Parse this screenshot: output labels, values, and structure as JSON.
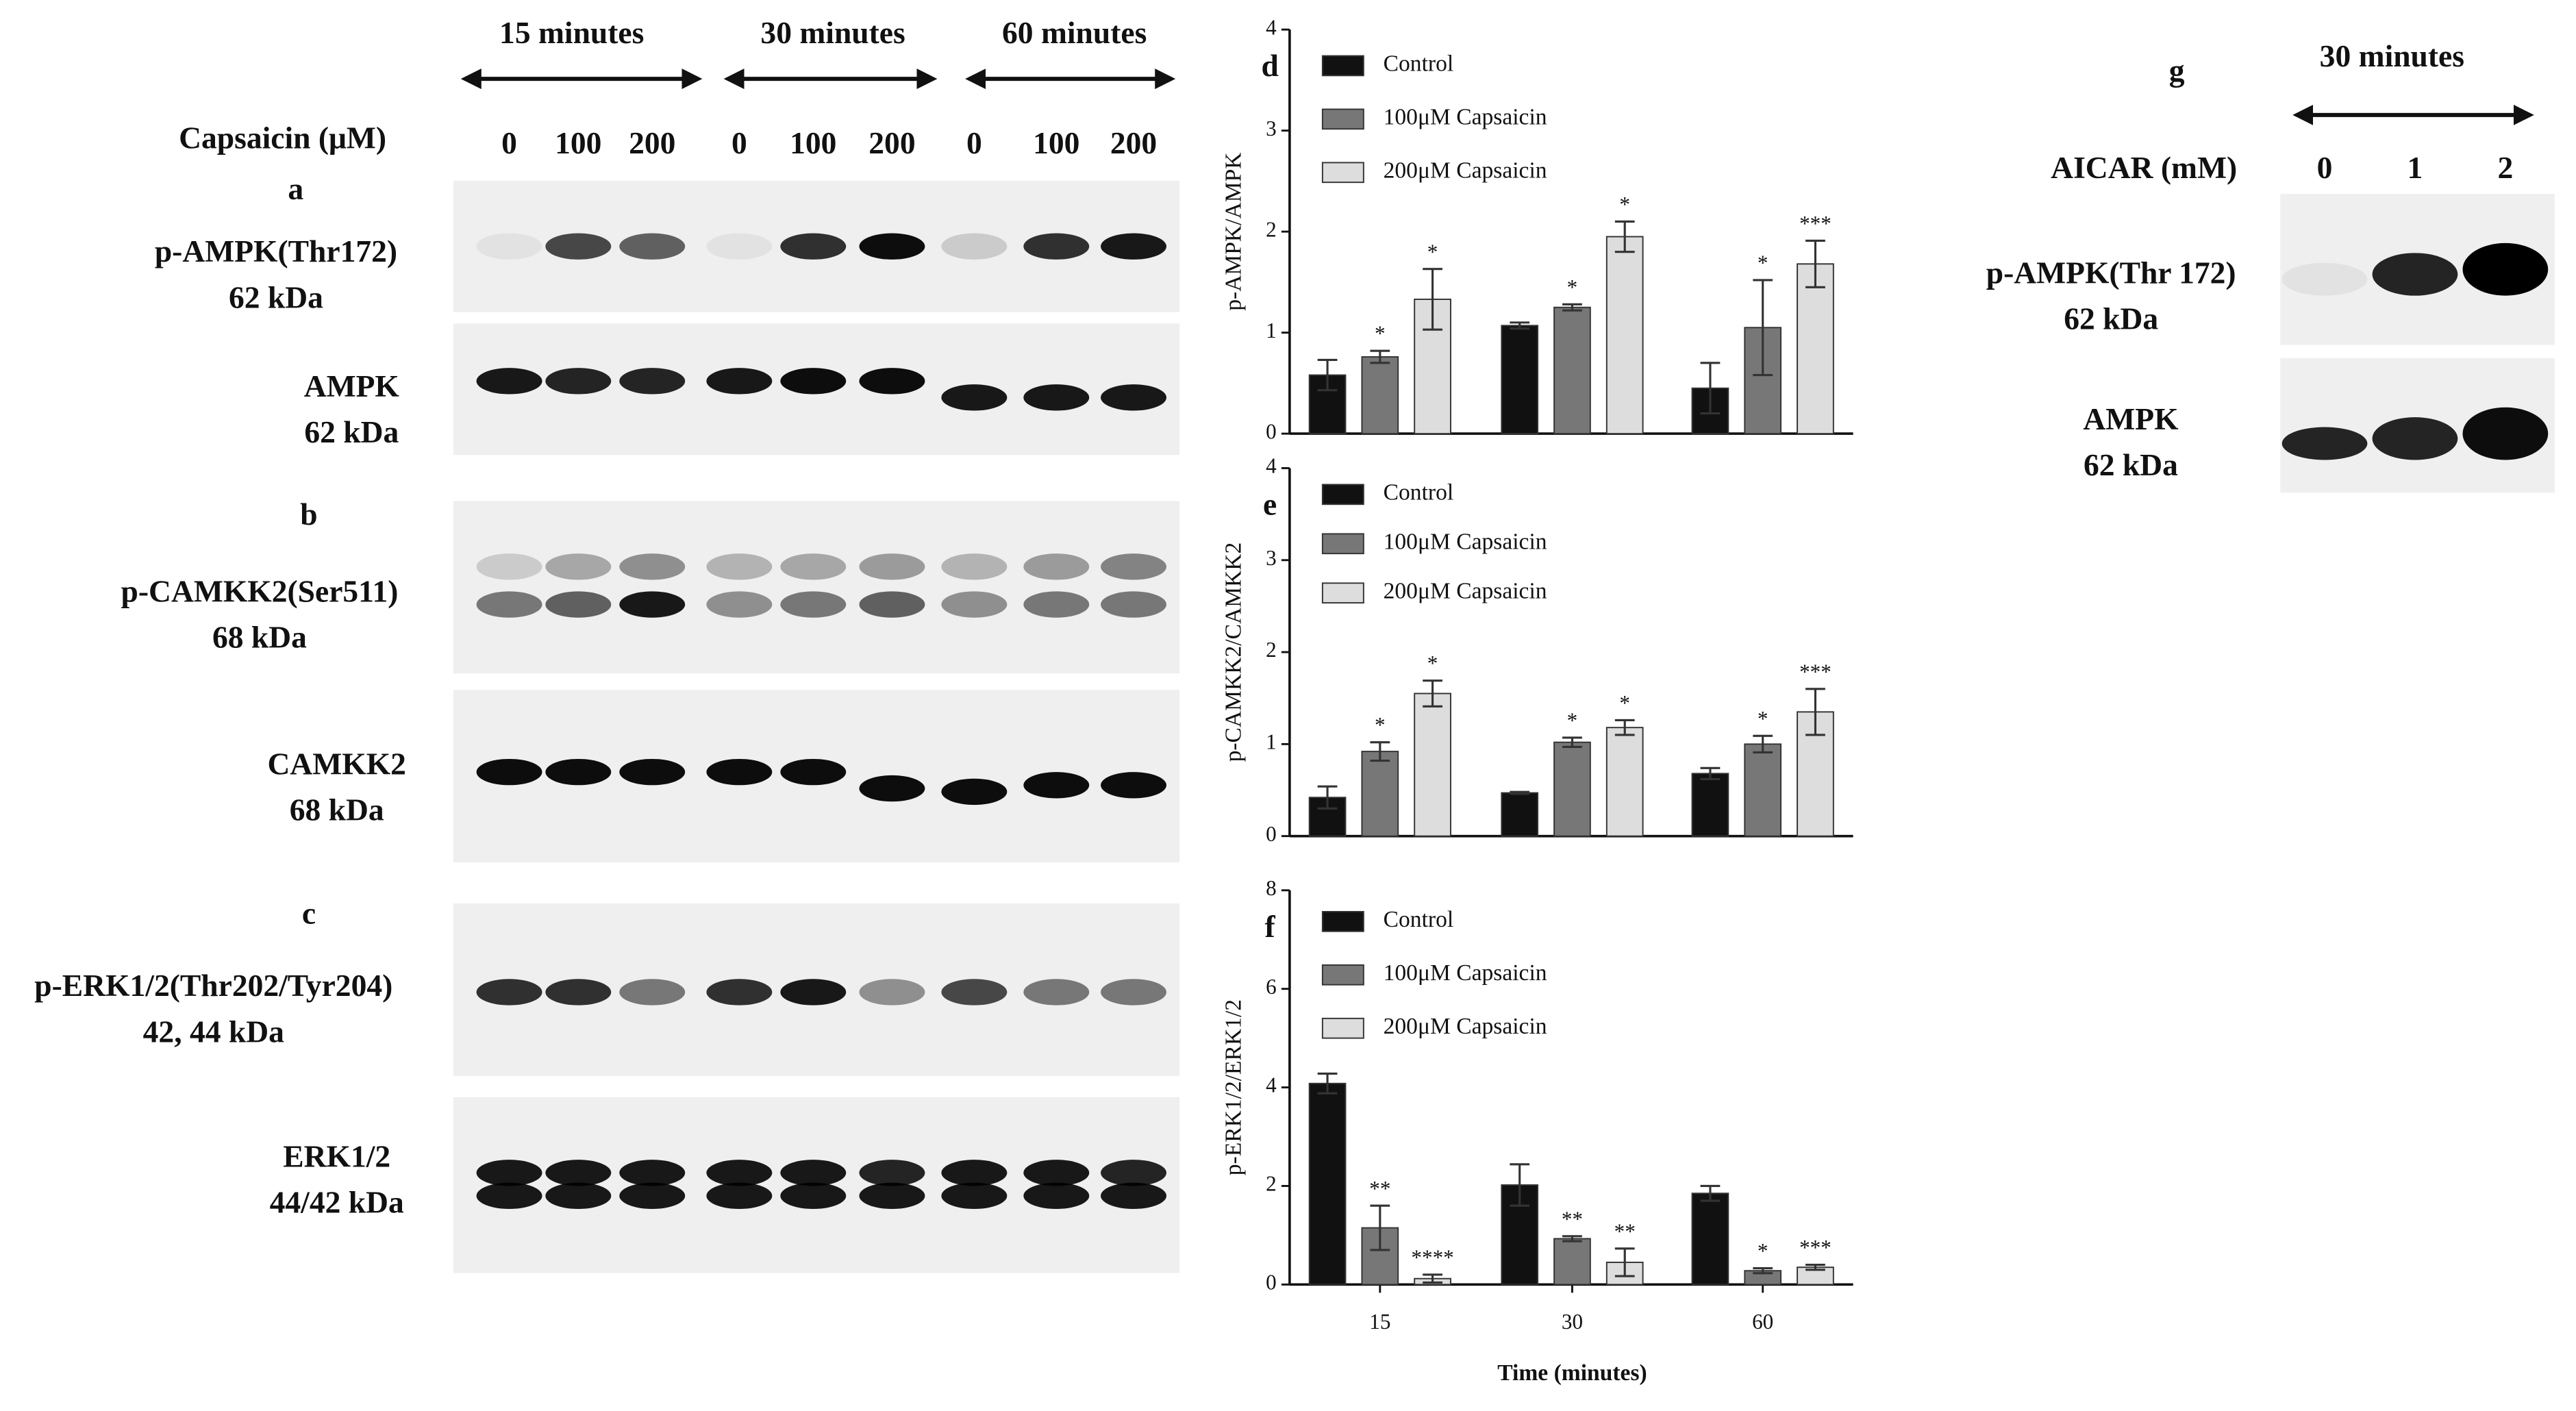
{
  "blots": {
    "time_headers": [
      "15 minutes",
      "30 minutes",
      "60 minutes"
    ],
    "treatment_label": "Capsaicin (μM)",
    "lanes": [
      "0",
      "100",
      "200",
      "0",
      "100",
      "200",
      "0",
      "100",
      "200"
    ],
    "panels": [
      {
        "letter": "a",
        "rows": [
          {
            "protein": "p-AMPK(Thr172)",
            "size": "62 kDa"
          },
          {
            "protein": "AMPK",
            "size": "62 kDa"
          }
        ]
      },
      {
        "letter": "b",
        "rows": [
          {
            "protein": "p-CAMKK2(Ser511)",
            "size": "68 kDa"
          },
          {
            "protein": "CAMKK2",
            "size": "68 kDa"
          }
        ]
      },
      {
        "letter": "c",
        "rows": [
          {
            "protein": "p-ERK1/2(Thr202/Tyr204)",
            "size": "42, 44 kDa"
          },
          {
            "protein": "ERK1/2",
            "size": "44/42 kDa"
          }
        ]
      }
    ]
  },
  "panel_g": {
    "letter": "g",
    "time_header": "30 minutes",
    "treatment_label": "AICAR (mM)",
    "lanes": [
      "0",
      "1",
      "2"
    ],
    "rows": [
      {
        "protein": "p-AMPK(Thr 172)",
        "size": "62 kDa"
      },
      {
        "protein": "AMPK",
        "size": "62 kDa"
      }
    ]
  },
  "chart_data": [
    {
      "type": "bar",
      "panel": "d",
      "ylabel": "p-AMPK/AMPK",
      "categories": [
        null,
        null,
        null
      ],
      "ylim": [
        0,
        4
      ],
      "yticks": [
        0,
        1,
        2,
        3,
        4
      ],
      "series": [
        {
          "name": "Control",
          "color": "#111111",
          "values": [
            0.58,
            1.07,
            0.45
          ],
          "errors": [
            0.15,
            0.03,
            0.25
          ]
        },
        {
          "name": "100μM Capsaicin",
          "color": "#777777",
          "values": [
            0.76,
            1.25,
            1.05
          ],
          "errors": [
            0.06,
            0.03,
            0.47
          ],
          "stars": [
            "*",
            "*",
            "*"
          ]
        },
        {
          "name": "200μM Capsaicin",
          "color": "#dddddd",
          "values": [
            1.33,
            1.95,
            1.68
          ],
          "errors": [
            0.3,
            0.15,
            0.23
          ],
          "stars": [
            "*",
            "*",
            "***"
          ]
        }
      ]
    },
    {
      "type": "bar",
      "panel": "e",
      "ylabel": "p-CAMKK2/CAMKK2",
      "categories": [
        null,
        null,
        null
      ],
      "ylim": [
        0,
        4
      ],
      "yticks": [
        0,
        1,
        2,
        3,
        4
      ],
      "series": [
        {
          "name": "Control",
          "color": "#111111",
          "values": [
            0.42,
            0.47,
            0.68
          ],
          "errors": [
            0.12,
            0.01,
            0.06
          ]
        },
        {
          "name": "100μM Capsaicin",
          "color": "#777777",
          "values": [
            0.92,
            1.02,
            1.0
          ],
          "errors": [
            0.1,
            0.05,
            0.09
          ],
          "stars": [
            "*",
            "*",
            "*"
          ]
        },
        {
          "name": "200μM Capsaicin",
          "color": "#dddddd",
          "values": [
            1.55,
            1.18,
            1.35
          ],
          "errors": [
            0.14,
            0.08,
            0.25
          ],
          "stars": [
            "*",
            "*",
            "***"
          ]
        }
      ]
    },
    {
      "type": "bar",
      "panel": "f",
      "ylabel": "p-ERK1/2/ERK1/2",
      "xlabel": "Time (minutes)",
      "categories": [
        "15",
        "30",
        "60"
      ],
      "ylim": [
        0,
        8
      ],
      "yticks": [
        0,
        2,
        4,
        6,
        8
      ],
      "series": [
        {
          "name": "Control",
          "color": "#111111",
          "values": [
            4.08,
            2.02,
            1.85
          ],
          "errors": [
            0.2,
            0.42,
            0.15
          ]
        },
        {
          "name": "100μM Capsaicin",
          "color": "#777777",
          "values": [
            1.15,
            0.93,
            0.28
          ],
          "errors": [
            0.45,
            0.05,
            0.05
          ],
          "stars": [
            "**",
            "**",
            "*"
          ]
        },
        {
          "name": "200μM Capsaicin",
          "color": "#dddddd",
          "values": [
            0.12,
            0.45,
            0.35
          ],
          "errors": [
            0.08,
            0.28,
            0.05
          ],
          "stars": [
            "****",
            "**",
            "***"
          ]
        }
      ]
    }
  ]
}
